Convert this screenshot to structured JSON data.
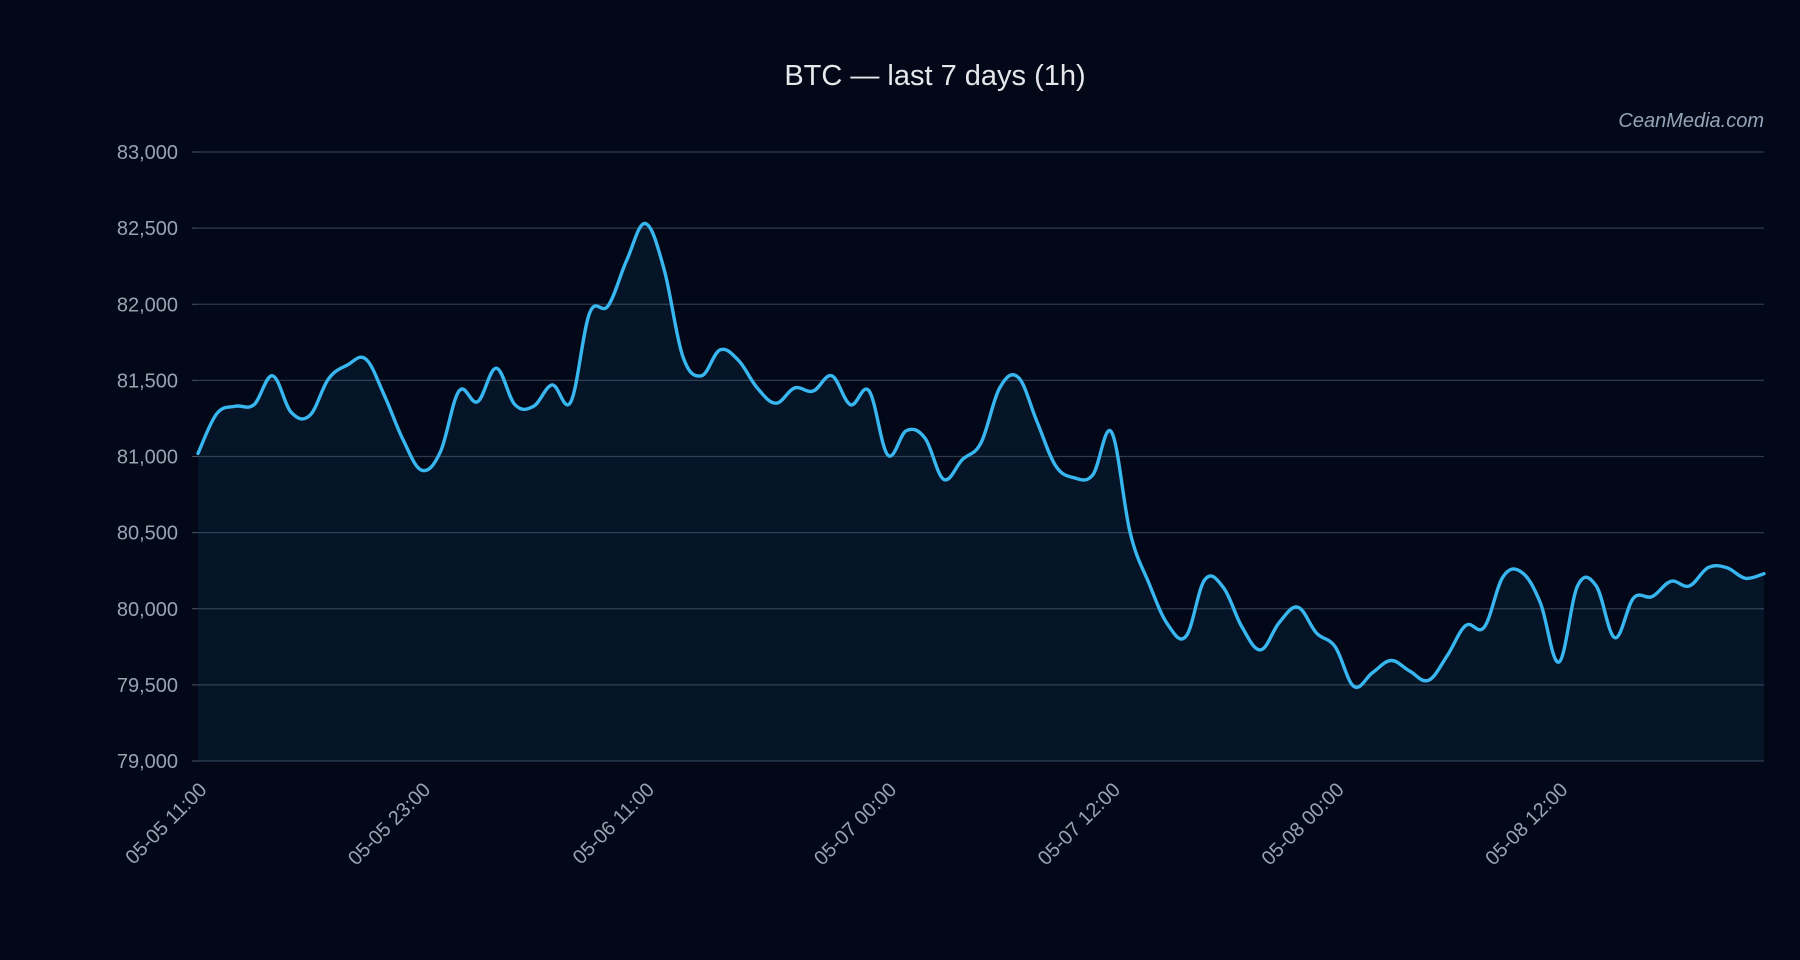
{
  "chart_data": {
    "type": "area",
    "title": "BTC — last 7 days (1h)",
    "watermark": "CeanMedia.com",
    "xlabel": "",
    "ylabel": "",
    "grid": true,
    "ylim": [
      79000,
      83000
    ],
    "y_ticks": [
      79000,
      79500,
      80000,
      80500,
      81000,
      81500,
      82000,
      82500,
      83000
    ],
    "y_tick_labels": [
      "79,000",
      "79,500",
      "80,000",
      "80,500",
      "81,000",
      "81,500",
      "82,000",
      "82,500",
      "83,000"
    ],
    "x_ticks": [
      {
        "label": "05-05 11:00",
        "value": "05-05 11:00"
      },
      {
        "label": "05-05 23:00",
        "value": "05-05 23:00"
      },
      {
        "label": "05-06 11:00",
        "value": "05-06 11:00"
      },
      {
        "label": "05-07 00:00",
        "value": "05-07 00:00"
      },
      {
        "label": "05-07 12:00",
        "value": "05-07 12:00"
      },
      {
        "label": "05-08 00:00",
        "value": "05-08 00:00"
      },
      {
        "label": "05-08 12:00",
        "value": "05-08 12:00"
      }
    ],
    "colors": {
      "line": "#38b6f0",
      "background": "#020817"
    },
    "series": [
      {
        "x": [
          "05-05 11:00",
          "05-05 12:00",
          "05-05 13:00",
          "05-05 14:00",
          "05-05 15:00",
          "05-05 16:00",
          "05-05 17:00",
          "05-05 18:00",
          "05-05 19:00",
          "05-05 20:00",
          "05-05 21:00",
          "05-05 22:00",
          "05-05 23:00",
          "05-06 00:00",
          "05-06 01:00",
          "05-06 02:00",
          "05-06 03:00",
          "05-06 04:00",
          "05-06 05:00",
          "05-06 06:00",
          "05-06 07:00",
          "05-06 08:00",
          "05-06 09:00",
          "05-06 10:00",
          "05-06 11:00",
          "05-06 12:00",
          "05-06 13:00",
          "05-06 14:00",
          "05-06 15:00",
          "05-06 16:00",
          "05-06 17:00",
          "05-06 18:00",
          "05-06 19:00",
          "05-06 20:00",
          "05-06 21:00",
          "05-06 22:00",
          "05-06 23:00",
          "05-07 00:00",
          "05-07 01:00",
          "05-07 02:00",
          "05-07 03:00",
          "05-07 04:00",
          "05-07 05:00",
          "05-07 06:00",
          "05-07 07:00",
          "05-07 08:00",
          "05-07 09:00",
          "05-07 10:00",
          "05-07 11:00",
          "05-07 12:00",
          "05-07 13:00",
          "05-07 14:00",
          "05-07 15:00",
          "05-07 16:00",
          "05-07 17:00",
          "05-07 18:00",
          "05-07 19:00",
          "05-07 20:00",
          "05-07 21:00",
          "05-07 22:00",
          "05-07 23:00",
          "05-08 00:00",
          "05-08 01:00",
          "05-08 02:00",
          "05-08 03:00",
          "05-08 04:00",
          "05-08 05:00",
          "05-08 06:00",
          "05-08 07:00",
          "05-08 08:00",
          "05-08 09:00",
          "05-08 10:00",
          "05-08 11:00",
          "05-08 12:00",
          "05-08 13:00",
          "05-08 14:00",
          "05-08 15:00",
          "05-08 16:00",
          "05-08 17:00",
          "05-08 18:00",
          "05-08 19:00",
          "05-08 20:00",
          "05-08 21:00",
          "05-08 22:00",
          "05-08 23:00"
        ],
        "values": [
          81020,
          81280,
          81330,
          81340,
          81530,
          81290,
          81270,
          81510,
          81600,
          81640,
          81400,
          81110,
          80910,
          81030,
          81430,
          81360,
          81580,
          81340,
          81330,
          81470,
          81360,
          81940,
          81990,
          82290,
          82530,
          82230,
          81660,
          81530,
          81700,
          81630,
          81450,
          81350,
          81450,
          81430,
          81530,
          81340,
          81430,
          81010,
          81170,
          81120,
          80850,
          80980,
          81090,
          81450,
          81520,
          81230,
          80940,
          80860,
          80880,
          81160,
          80500,
          80170,
          79900,
          79820,
          80190,
          80140,
          79880,
          79730,
          79910,
          80010,
          79840,
          79750,
          79490,
          79580,
          79660,
          79590,
          79530,
          79690,
          79890,
          79880,
          80210,
          80240,
          80040,
          79650,
          80150,
          80150,
          79810,
          80070,
          80080,
          80180,
          80150,
          80270,
          80270,
          80200,
          80230
        ]
      }
    ]
  }
}
